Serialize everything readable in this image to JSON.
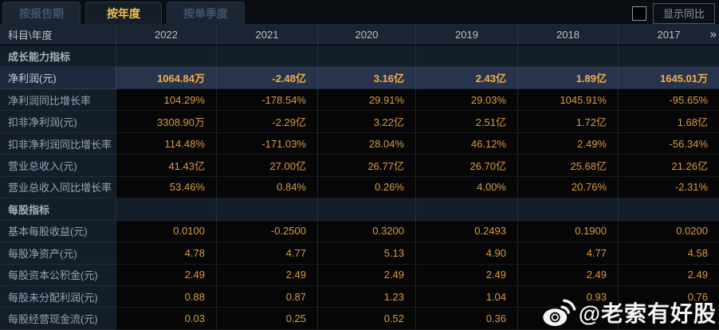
{
  "tabs": [
    {
      "label": "按报告期",
      "active": false
    },
    {
      "label": "按年度",
      "active": true
    },
    {
      "label": "按单季度",
      "active": false
    }
  ],
  "controls": {
    "show_yoy_label": "显示同比",
    "yoy_checkbox_checked": false
  },
  "table": {
    "corner_label": "科目\\年度",
    "years": [
      "2022",
      "2021",
      "2020",
      "2019",
      "2018",
      "2017"
    ],
    "more_icon": "»",
    "rows": [
      {
        "type": "section",
        "label": "成长能力指标",
        "values": [
          "",
          "",
          "",
          "",
          "",
          ""
        ]
      },
      {
        "type": "highlight",
        "label": "净利润(元)",
        "values": [
          "1064.84万",
          "-2.48亿",
          "3.16亿",
          "2.43亿",
          "1.89亿",
          "1645.01万"
        ]
      },
      {
        "type": "normal",
        "label": "净利润同比增长率",
        "values": [
          "104.29%",
          "-178.54%",
          "29.91%",
          "29.03%",
          "1045.91%",
          "-95.65%"
        ]
      },
      {
        "type": "normal",
        "label": "扣非净利润(元)",
        "values": [
          "3308.90万",
          "-2.29亿",
          "3.22亿",
          "2.51亿",
          "1.72亿",
          "1.68亿"
        ]
      },
      {
        "type": "normal",
        "label": "扣非净利润同比增长率",
        "values": [
          "114.48%",
          "-171.03%",
          "28.04%",
          "46.12%",
          "2.49%",
          "-56.34%"
        ]
      },
      {
        "type": "normal",
        "label": "营业总收入(元)",
        "values": [
          "41.43亿",
          "27.00亿",
          "26.77亿",
          "26.70亿",
          "25.68亿",
          "21.26亿"
        ]
      },
      {
        "type": "normal",
        "label": "营业总收入同比增长率",
        "values": [
          "53.46%",
          "0.84%",
          "0.26%",
          "4.00%",
          "20.76%",
          "-2.31%"
        ]
      },
      {
        "type": "section",
        "label": "每股指标",
        "values": [
          "",
          "",
          "",
          "",
          "",
          ""
        ]
      },
      {
        "type": "normal",
        "label": "基本每股收益(元)",
        "values": [
          "0.0100",
          "-0.2500",
          "0.3200",
          "0.2493",
          "0.1900",
          "0.0200"
        ]
      },
      {
        "type": "normal",
        "label": "每股净资产(元)",
        "values": [
          "4.78",
          "4.77",
          "5.13",
          "4.90",
          "4.77",
          "4.58"
        ]
      },
      {
        "type": "normal",
        "label": "每股资本公积金(元)",
        "values": [
          "2.49",
          "2.49",
          "2.49",
          "2.49",
          "2.49",
          "2.49"
        ]
      },
      {
        "type": "normal",
        "label": "每股未分配利润(元)",
        "values": [
          "0.88",
          "0.87",
          "1.23",
          "1.04",
          "0.93",
          "0.76"
        ]
      },
      {
        "type": "normal",
        "label": "每股经营现金流(元)",
        "values": [
          "0.03",
          "0.25",
          "0.52",
          "0.36",
          "",
          ""
        ]
      }
    ]
  },
  "watermark": {
    "text": "@老索有好股",
    "icon": "weibo-icon"
  },
  "colors": {
    "accent-yellow": "#f2c24d",
    "value-orange": "#dc9b3f",
    "highlight-orange": "#f3ae4c",
    "header-text": "#b9c3cd",
    "label-text": "#98a4b2",
    "tab-inactive-text": "#43546b",
    "header-bg": "#1a2432",
    "label-col-bg": "#141d2a",
    "highlight-bg": "#27344c",
    "highlight-label-bg": "#1d2a3e"
  }
}
